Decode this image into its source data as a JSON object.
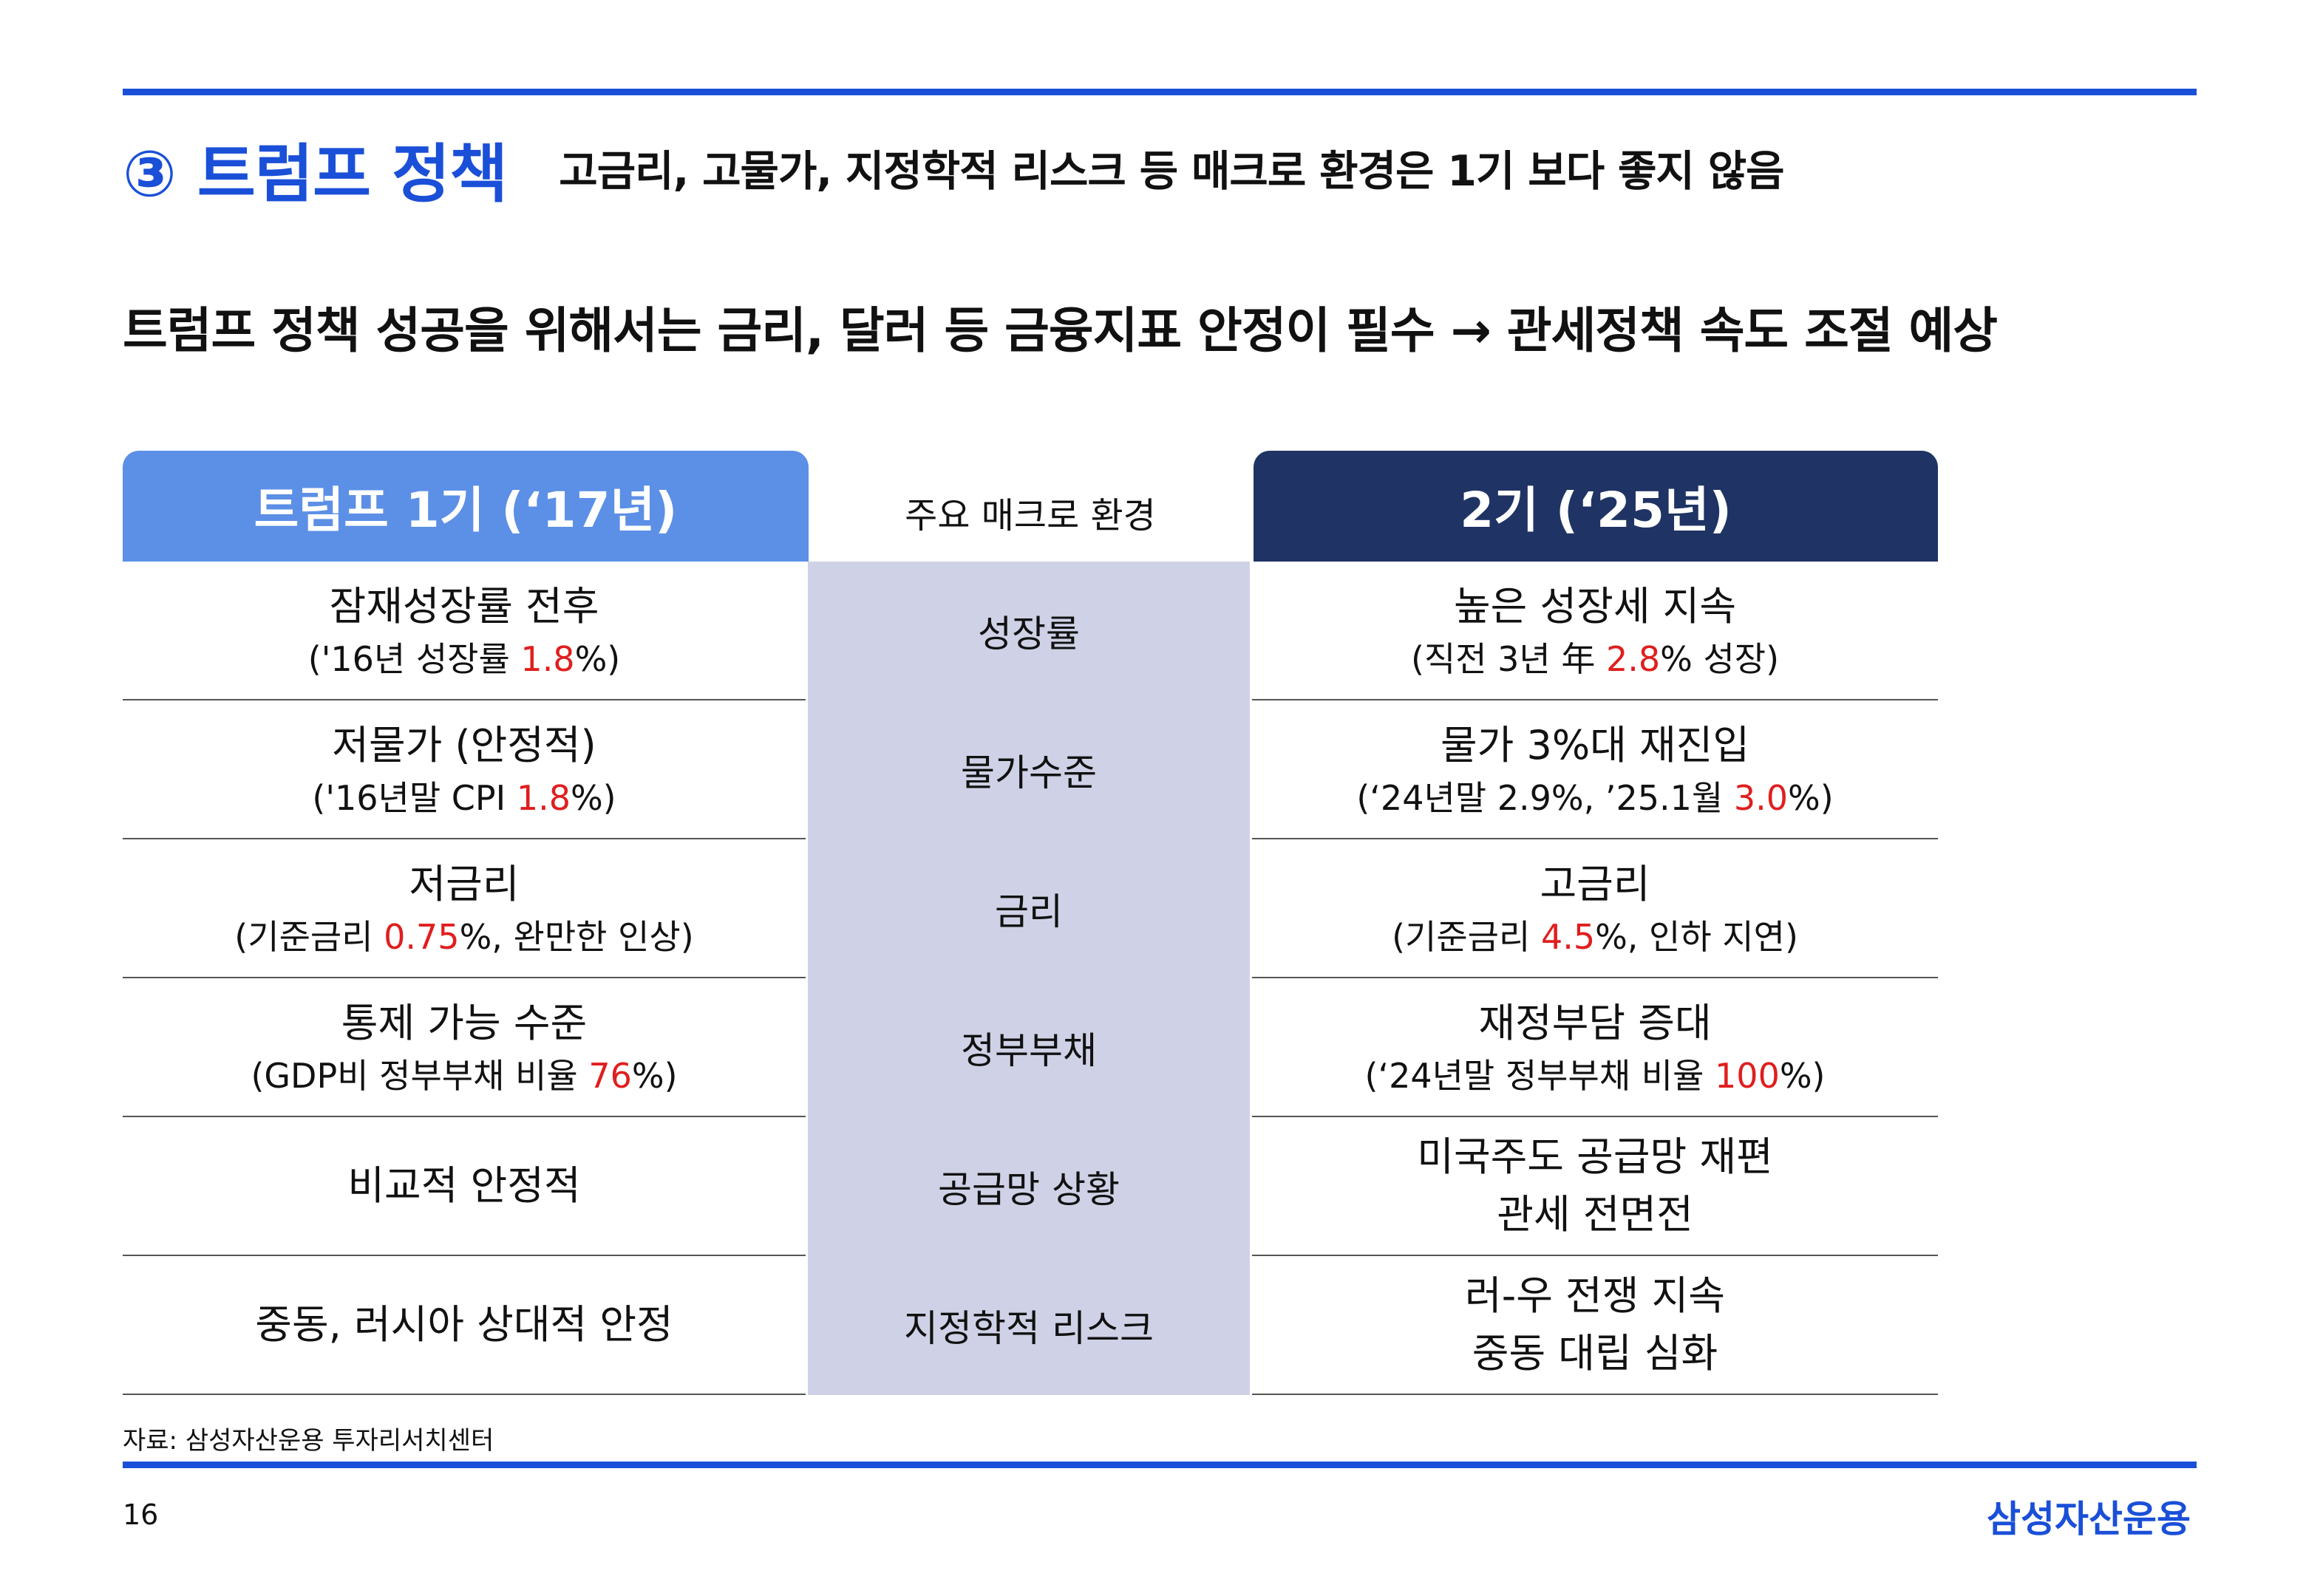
{
  "title": {
    "main": "③ 트럼프 정책",
    "sub": "고금리, 고물가, 지정학적 리스크 등 매크로 환경은 1기 보다 좋지 않음"
  },
  "headline": "트럼프 정책 성공을 위해서는 금리, 달러 등 금융지표 안정이 필수 → 관세정책 속도 조절 예상",
  "table": {
    "headers": {
      "left": "트럼프 1기 (‘17년)",
      "middle": "주요 매크로 환경",
      "right": "2기 (‘25년)"
    },
    "rows": [
      {
        "category": "성장률",
        "left": {
          "main": "잠재성장률 전후",
          "sub_pre": "('16년 성장률 ",
          "sub_red": "1.8",
          "sub_post": "%)"
        },
        "right": {
          "main": "높은 성장세 지속",
          "sub_pre": "(직전 3년 年 ",
          "sub_red": "2.8",
          "sub_post": "% 성장)"
        }
      },
      {
        "category": "물가수준",
        "left": {
          "main": "저물가 (안정적)",
          "sub_pre": "('16년말 CPI ",
          "sub_red": "1.8",
          "sub_post": "%)"
        },
        "right": {
          "main": "물가 3%대 재진입",
          "sub_pre": "(‘24년말 2.9%, ’25.1월 ",
          "sub_red": "3.0",
          "sub_post": "%)"
        }
      },
      {
        "category": "금리",
        "left": {
          "main": "저금리",
          "sub_pre": "(기준금리 ",
          "sub_red": "0.75",
          "sub_post": "%, 완만한 인상)"
        },
        "right": {
          "main": "고금리",
          "sub_pre": "(기준금리 ",
          "sub_red": "4.5",
          "sub_post": "%, 인하 지연)"
        }
      },
      {
        "category": "정부부채",
        "left": {
          "main": "통제 가능 수준",
          "sub_pre": "(GDP비 정부부채 비율 ",
          "sub_red": "76",
          "sub_post": "%)"
        },
        "right": {
          "main": "재정부담 증대",
          "sub_pre": "(‘24년말 정부부채 비율 ",
          "sub_red": "100",
          "sub_post": "%)"
        }
      },
      {
        "category": "공급망 상황",
        "left": {
          "main": "비교적 안정적"
        },
        "right": {
          "main": "미국주도 공급망 재편",
          "main2": "관세 전면전"
        }
      },
      {
        "category": "지정학적 리스크",
        "left": {
          "main": "중동, 러시아 상대적 안정"
        },
        "right": {
          "main": "러-우 전쟁 지속",
          "main2": "중동 대립 심화"
        }
      }
    ]
  },
  "footer": {
    "source": "자료: 삼성자산운용 투자리서치센터",
    "page_number": "16",
    "brand": "삼성자산운용"
  },
  "colors": {
    "accent_blue": "#1a4fd8",
    "left_header": "#5c8fe6",
    "right_header": "#1f3464",
    "middle_column": "#cfd2e6",
    "highlight_red": "#e01e1e"
  }
}
